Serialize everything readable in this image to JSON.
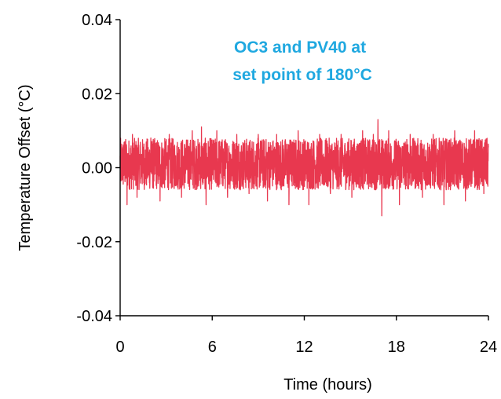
{
  "chart_data": {
    "type": "line",
    "title": "",
    "xlabel": "Time (hours)",
    "ylabel": "Temperature Offset (°C)",
    "xlim": [
      0,
      24
    ],
    "ylim": [
      -0.04,
      0.04
    ],
    "x_ticks": [
      0,
      6,
      12,
      18,
      24
    ],
    "x_tick_labels": [
      "0",
      "6",
      "12",
      "18",
      "24"
    ],
    "y_ticks": [
      -0.04,
      -0.02,
      0.0,
      0.02,
      0.04
    ],
    "y_tick_labels": [
      "-0.04",
      "-0.02",
      "0.00",
      "0.02",
      "0.04"
    ],
    "grid": false,
    "legend": "none",
    "annotation": {
      "lines": [
        "OC3 and PV40 at",
        "set point of 180°C"
      ],
      "color": "#1fa8e0"
    },
    "series": [
      {
        "color": "#e8384f",
        "sampling_interval_hours": 0.01,
        "typical_range": [
          -0.006,
          0.008
        ],
        "x": [
          0.3,
          0.45,
          0.8,
          1.1,
          2.0,
          2.6,
          3.2,
          4.0,
          4.7,
          5.3,
          5.6,
          6.3,
          7.0,
          7.6,
          8.4,
          9.0,
          9.6,
          10.2,
          11.0,
          11.6,
          12.3,
          13.0,
          13.7,
          14.4,
          15.1,
          15.8,
          16.5,
          16.8,
          17.05,
          17.5,
          18.2,
          18.9,
          19.7,
          20.4,
          21.1,
          21.8,
          22.5,
          23.1,
          23.7
        ],
        "y": [
          0.007,
          -0.01,
          0.009,
          -0.008,
          0.008,
          -0.009,
          0.009,
          -0.008,
          0.01,
          0.011,
          -0.01,
          0.01,
          -0.008,
          0.009,
          -0.007,
          0.009,
          -0.009,
          0.009,
          -0.01,
          0.01,
          -0.01,
          0.009,
          -0.007,
          0.009,
          -0.008,
          0.01,
          0.009,
          0.013,
          -0.013,
          0.01,
          -0.01,
          0.009,
          -0.008,
          0.009,
          -0.01,
          0.01,
          -0.009,
          0.01,
          -0.007
        ]
      }
    ]
  }
}
